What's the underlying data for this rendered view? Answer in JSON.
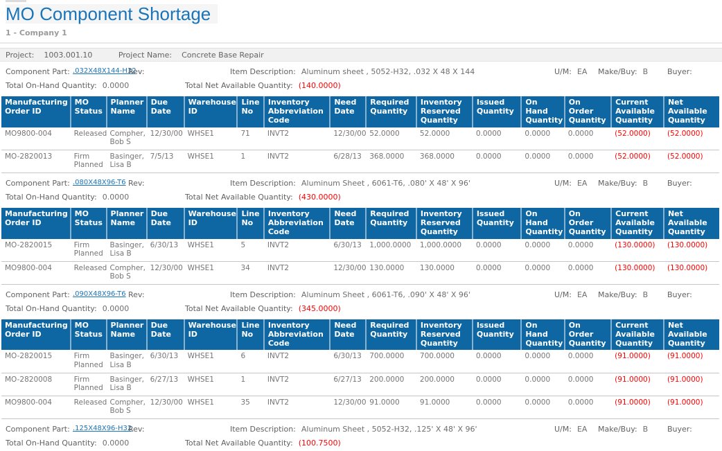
{
  "report": {
    "title": "MO Component Shortage",
    "company": "1 - Company 1"
  },
  "project": {
    "label": "Project:",
    "value": "1003.001.10",
    "name_label": "Project Name:",
    "name_value": "Concrete Base Repair"
  },
  "labels": {
    "component_part": "Component Part:",
    "rev": "Rev:",
    "item_description": "Item Description:",
    "um": "U/M:",
    "make_buy": "Make/Buy:",
    "buyer": "Buyer:",
    "total_on_hand": "Total On-Hand Quantity:",
    "total_net_available": "Total Net Available Quantity:"
  },
  "colors": {
    "accent_blue": "#1a74ba",
    "table_header_blue": "#0e67a3",
    "negative_red": "#ff0000"
  },
  "table": {
    "columns": [
      "Manufacturing Order ID",
      "MO Status",
      "Planner Name",
      "Due Date",
      "Warehouse ID",
      "Line No",
      "Inventory Abbreviation Code",
      "Need Date",
      "Required Quantity",
      "Inventory Reserved Quantity",
      "Issued Quantity",
      "On Hand Quantity",
      "On Order Quantity",
      "Current Available Quantity",
      "Net Available Quantity"
    ],
    "keys": [
      "manufacturing-order-id",
      "mo-status",
      "planner-name",
      "due-date",
      "warehouse-id",
      "line-no",
      "inventory-abbreviation-code",
      "need-date",
      "required-quantity",
      "inventory-reserved-quantity",
      "issued-quantity",
      "on-hand-quantity",
      "on-order-quantity",
      "current-available-quantity",
      "net-available-quantity"
    ]
  },
  "sections": [
    {
      "part": ".032X48X144-H32",
      "rev": "",
      "item_description": "Aluminum sheet , 5052-H32, .032 X 48 X 144",
      "um": "EA",
      "make_buy": "B",
      "buyer": "",
      "total_on_hand": "0.0000",
      "total_net_available": "(140.0000)",
      "rows": [
        [
          "MO9800-004",
          "Released",
          "Compher, Bob S",
          "12/30/00",
          "WHSE1",
          "71",
          "INVT2",
          "12/30/00",
          "52.0000",
          "52.0000",
          "0.0000",
          "0.0000",
          "0.0000",
          "(52.0000)",
          "(52.0000)"
        ],
        [
          "MO-2820013",
          "Firm Planned",
          "Basinger, Lisa B",
          "7/5/13",
          "WHSE1",
          "1",
          "INVT2",
          "6/28/13",
          "368.0000",
          "368.0000",
          "0.0000",
          "0.0000",
          "0.0000",
          "(52.0000)",
          "(52.0000)"
        ]
      ]
    },
    {
      "part": ".080X48X96-T6",
      "rev": "",
      "item_description": "Aluminum Sheet , 6061-T6, .080' X 48' X 96'",
      "um": "EA",
      "make_buy": "B",
      "buyer": "",
      "total_on_hand": "0.0000",
      "total_net_available": "(430.0000)",
      "rows": [
        [
          "MO-2820015",
          "Firm Planned",
          "Basinger, Lisa B",
          "6/30/13",
          "WHSE1",
          "5",
          "INVT2",
          "6/30/13",
          "1,000.0000",
          "1,000.0000",
          "0.0000",
          "0.0000",
          "0.0000",
          "(130.0000)",
          "(130.0000)"
        ],
        [
          "MO9800-004",
          "Released",
          "Compher, Bob S",
          "12/30/00",
          "WHSE1",
          "34",
          "INVT2",
          "12/30/00",
          "130.0000",
          "130.0000",
          "0.0000",
          "0.0000",
          "0.0000",
          "(130.0000)",
          "(130.0000)"
        ]
      ]
    },
    {
      "part": ".090X48X96-T6",
      "rev": "",
      "item_description": "Aluminum Sheet , 6061-T6, .090' X 48' X 96'",
      "um": "EA",
      "make_buy": "B",
      "buyer": "",
      "total_on_hand": "0.0000",
      "total_net_available": "(345.0000)",
      "rows": [
        [
          "MO-2820015",
          "Firm Planned",
          "Basinger, Lisa B",
          "6/30/13",
          "WHSE1",
          "6",
          "INVT2",
          "6/30/13",
          "700.0000",
          "700.0000",
          "0.0000",
          "0.0000",
          "0.0000",
          "(91.0000)",
          "(91.0000)"
        ],
        [
          "MO-2820008",
          "Firm Planned",
          "Basinger, Lisa B",
          "6/27/13",
          "WHSE1",
          "1",
          "INVT2",
          "6/27/13",
          "200.0000",
          "200.0000",
          "0.0000",
          "0.0000",
          "0.0000",
          "(91.0000)",
          "(91.0000)"
        ],
        [
          "MO9800-004",
          "Released",
          "Compher, Bob S",
          "12/30/00",
          "WHSE1",
          "35",
          "INVT2",
          "12/30/00",
          "91.0000",
          "91.0000",
          "0.0000",
          "0.0000",
          "0.0000",
          "(91.0000)",
          "(91.0000)"
        ]
      ]
    },
    {
      "part": ".125X48X96-H32",
      "rev": "",
      "item_description": "Aluminum Sheet , 5052-H32, .125' X 48' X 96'",
      "um": "EA",
      "make_buy": "B",
      "buyer": "",
      "total_on_hand": "0.0000",
      "total_net_available": "(100.7500)",
      "rows": []
    }
  ]
}
